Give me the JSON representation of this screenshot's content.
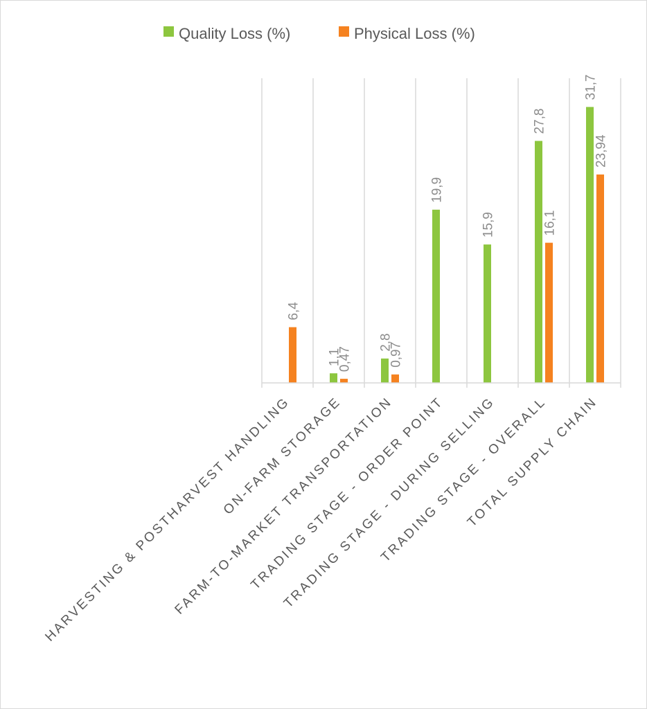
{
  "chart_data": {
    "type": "bar",
    "title": "",
    "xlabel": "",
    "ylabel": "",
    "ylim": [
      0,
      35
    ],
    "grid": "vertical category separators",
    "legend_position": "top-center",
    "categories": [
      "HARVESTING & POSTHARVEST HANDLING",
      "ON-FARM STORAGE",
      "FARM-TO-MARKET TRANSPORTATION",
      "TRADING STAGE - ORDER POINT",
      "TRADING STAGE - DURING SELLING",
      "TRADING STAGE - OVERALL",
      "TOTAL SUPPLY CHAIN"
    ],
    "series": [
      {
        "name": "Quality Loss (%)",
        "color": "#8dc63f",
        "values": [
          null,
          1.1,
          2.8,
          19.9,
          15.9,
          27.8,
          31.7
        ],
        "labels": [
          "",
          "1,1",
          "2,8",
          "19,9",
          "15,9",
          "27,8",
          "31,7"
        ]
      },
      {
        "name": "Physical Loss (%)",
        "color": "#f58220",
        "values": [
          6.4,
          0.47,
          0.97,
          null,
          null,
          16.1,
          23.94
        ],
        "labels": [
          "6,4",
          "0,47",
          "0,97",
          "",
          "",
          "16,1",
          "23,94"
        ]
      }
    ]
  }
}
